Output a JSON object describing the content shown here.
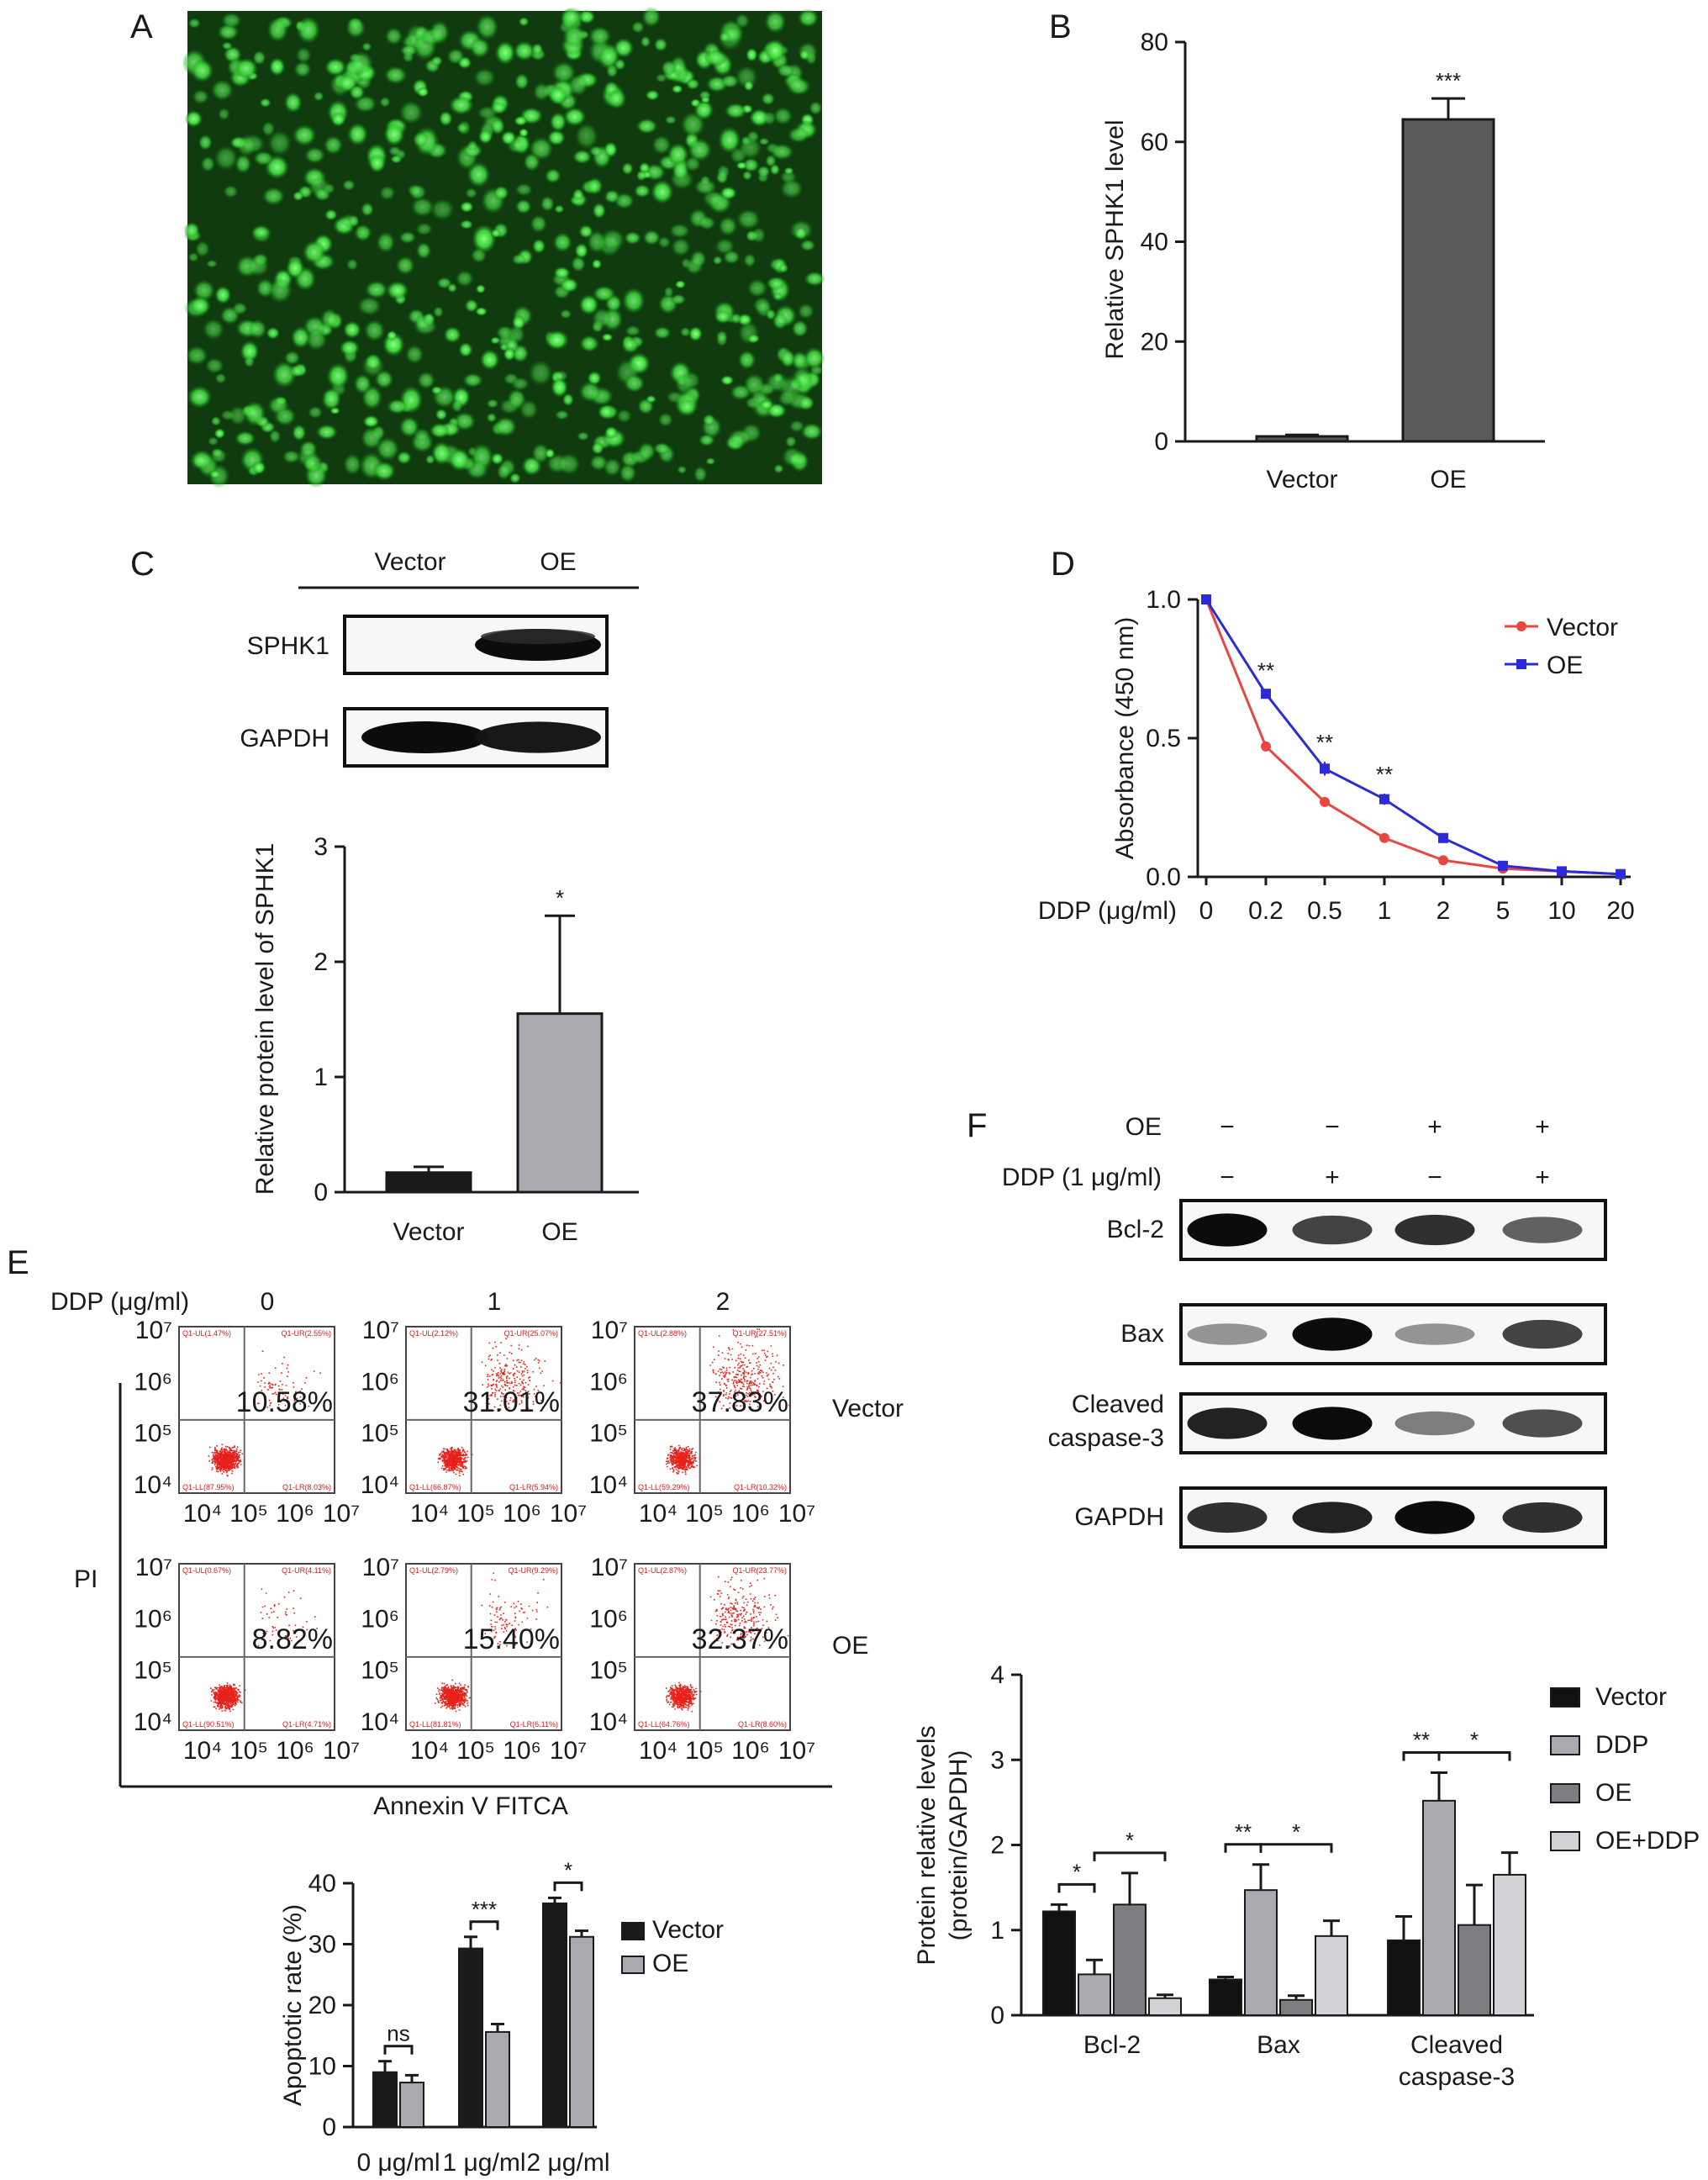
{
  "panels": {
    "A": "A",
    "B": "B",
    "C": "C",
    "D": "D",
    "E": "E",
    "F": "F"
  },
  "colors": {
    "fluorescence": "#39e03c",
    "flow_dots": "#e8201a",
    "vector_line": "#e8473f",
    "oe_line": "#2b2bd9",
    "dark_bar": "#5a5a5a",
    "grey_bar": "#a9aab0"
  },
  "panel_A": {
    "image": "green fluorescence micrograph of transfected cells"
  },
  "panel_C_blot": {
    "lanes": [
      "Vector",
      "OE"
    ],
    "rows": [
      {
        "label": "SPHK1",
        "bands": [
          0.04,
          1.0
        ]
      },
      {
        "label": "GAPDH",
        "bands": [
          1.0,
          0.95
        ]
      }
    ]
  },
  "panel_E_flow": {
    "header": "DDP (μg/ml)",
    "doses": [
      "0",
      "1",
      "2"
    ],
    "rows": [
      "Vector",
      "OE"
    ],
    "y_axis": "PI",
    "x_axis": "Annexin V FITCA",
    "tick_labels": [
      "10⁴",
      "10⁵",
      "10⁶",
      "10⁷"
    ],
    "y_tick_labels": [
      "10⁷",
      "10⁶",
      "10⁵",
      "10⁴"
    ],
    "percentages": [
      [
        "10.58%",
        "31.01%",
        "37.83%"
      ],
      [
        "8.82%",
        "15.40%",
        "32.37%"
      ]
    ],
    "quadrant_labels": [
      [
        [
          "Q1-UL(1.47%)",
          "Q1-UR(2.55%)",
          "Q1-LL(87.95%)",
          "Q1-LR(8.03%)"
        ],
        [
          "Q1-UL(2.12%)",
          "Q1-UR(25.07%)",
          "Q1-LL(66.87%)",
          "Q1-LR(5.94%)"
        ],
        [
          "Q1-UL(2.88%)",
          "Q1-UR(27.51%)",
          "Q1-LL(59.29%)",
          "Q1-LR(10.32%)"
        ]
      ],
      [
        [
          "Q1-UL(0.67%)",
          "Q1-UR(4.11%)",
          "Q1-LL(90.51%)",
          "Q1-LR(4.71%)"
        ],
        [
          "Q1-UL(2.79%)",
          "Q1-UR(9.29%)",
          "Q1-LL(81.81%)",
          "Q1-LR(6.11%)"
        ],
        [
          "Q1-UL(2.87%)",
          "Q1-UR(23.77%)",
          "Q1-LL(64.76%)",
          "Q1-LR(8.60%)"
        ]
      ]
    ]
  },
  "panel_F_blot": {
    "conditions": [
      {
        "label": "OE",
        "values": [
          "−",
          "−",
          "+",
          "+"
        ]
      },
      {
        "label": "DDP (1 μg/ml)",
        "values": [
          "−",
          "+",
          "−",
          "+"
        ]
      }
    ],
    "rows": [
      {
        "label": "Bcl-2",
        "bands": [
          1.0,
          0.75,
          0.85,
          0.6
        ]
      },
      {
        "label": "Bax",
        "bands": [
          0.3,
          1.0,
          0.3,
          0.75
        ]
      },
      {
        "label": "Cleaved\ncaspase-3",
        "bands": [
          0.9,
          1.0,
          0.45,
          0.7
        ]
      },
      {
        "label": "GAPDH",
        "bands": [
          0.85,
          0.9,
          1.0,
          0.85
        ]
      }
    ]
  },
  "chart_data": [
    {
      "panel": "B",
      "type": "bar",
      "categories": [
        "Vector",
        "OE"
      ],
      "values": [
        1,
        64.5
      ],
      "errors": [
        0.3,
        4.2
      ],
      "ylabel": "Relative SPHK1 level",
      "ylim": [
        0,
        80
      ],
      "yticks": [
        0,
        20,
        40,
        60,
        80
      ],
      "significance": [
        "",
        "***"
      ],
      "bar_colors": [
        "#5a5a5a",
        "#5a5a5a"
      ]
    },
    {
      "panel": "C",
      "type": "bar",
      "categories": [
        "Vector",
        "OE"
      ],
      "values": [
        0.17,
        1.55
      ],
      "errors": [
        0.05,
        0.85
      ],
      "ylabel": "Relative protein level of SPHK1",
      "ylim": [
        0,
        3
      ],
      "yticks": [
        0,
        1,
        2,
        3
      ],
      "significance": [
        "",
        "*"
      ],
      "bar_colors": [
        "#1a1a1a",
        "#a9aab0"
      ]
    },
    {
      "panel": "D",
      "type": "line",
      "x": [
        "0",
        "0.2",
        "0.5",
        "1",
        "2",
        "5",
        "10",
        "20"
      ],
      "xlabel": "DDP (μg/ml)",
      "ylabel": "Absorbance (450 nm)",
      "ylim": [
        0,
        1.0
      ],
      "yticks": [
        "0.0",
        "0.5",
        "1.0"
      ],
      "series": [
        {
          "name": "Vector",
          "values": [
            1.0,
            0.47,
            0.27,
            0.14,
            0.06,
            0.03,
            0.02,
            0.01
          ],
          "errors": [
            0,
            0.015,
            0.01,
            0.008,
            0.005,
            0.003,
            0.003,
            0.003
          ],
          "color": "#e8473f"
        },
        {
          "name": "OE",
          "values": [
            1.0,
            0.66,
            0.39,
            0.28,
            0.14,
            0.04,
            0.02,
            0.01
          ],
          "errors": [
            0,
            0.015,
            0.025,
            0.02,
            0.008,
            0.004,
            0.003,
            0.003
          ],
          "color": "#2b2bd9"
        }
      ],
      "significance": [
        {
          "x": "0.2",
          "label": "**"
        },
        {
          "x": "0.5",
          "label": "**"
        },
        {
          "x": "1",
          "label": "**"
        }
      ],
      "legend": "top-right"
    },
    {
      "panel": "E",
      "type": "bar",
      "categories": [
        "0 μg/ml",
        "1 μg/ml",
        "2 μg/ml"
      ],
      "ylabel": "Apoptotic rate (%)",
      "ylim": [
        0,
        40
      ],
      "yticks": [
        0,
        10,
        20,
        30,
        40
      ],
      "series": [
        {
          "name": "Vector",
          "values": [
            9.0,
            29.3,
            36.7
          ],
          "errors": [
            1.8,
            1.9,
            0.9
          ],
          "color": "#1a1a1a"
        },
        {
          "name": "OE",
          "values": [
            7.3,
            15.6,
            31.2
          ],
          "errors": [
            1.2,
            1.3,
            1.0
          ],
          "color": "#a9aab0"
        }
      ],
      "significance": [
        "ns",
        "***",
        "*"
      ],
      "legend": "right"
    },
    {
      "panel": "F",
      "type": "bar",
      "categories": [
        "Bcl-2",
        "Bax",
        "Cleaved\ncaspase-3"
      ],
      "ylabel": "Protein relative levels\n(protein/GAPDH)",
      "ylim": [
        0,
        4
      ],
      "yticks": [
        0,
        1,
        2,
        3,
        4
      ],
      "series": [
        {
          "name": "Vector",
          "values": [
            1.22,
            0.42,
            0.88
          ],
          "errors": [
            0.08,
            0.03,
            0.28
          ],
          "color": "#111111"
        },
        {
          "name": "DDP",
          "values": [
            0.48,
            1.47,
            2.52
          ],
          "errors": [
            0.17,
            0.3,
            0.33
          ],
          "color": "#a9aab0"
        },
        {
          "name": "OE",
          "values": [
            1.3,
            0.18,
            1.06
          ],
          "errors": [
            0.37,
            0.05,
            0.47
          ],
          "color": "#7e7e82"
        },
        {
          "name": "OE+DDP",
          "values": [
            0.2,
            0.93,
            1.65
          ],
          "errors": [
            0.04,
            0.18,
            0.26
          ],
          "color": "#d2d3d6"
        }
      ],
      "comparisons": [
        {
          "group": 0,
          "from": 0,
          "to": 1,
          "label": "*"
        },
        {
          "group": 0,
          "from": 1,
          "to": 3,
          "label": "*"
        },
        {
          "group": 1,
          "from": 0,
          "to": 1,
          "label": "**"
        },
        {
          "group": 1,
          "from": 1,
          "to": 3,
          "label": "*"
        },
        {
          "group": 2,
          "from": 0,
          "to": 1,
          "label": "**"
        },
        {
          "group": 2,
          "from": 1,
          "to": 3,
          "label": "*"
        }
      ],
      "legend": "right"
    }
  ]
}
